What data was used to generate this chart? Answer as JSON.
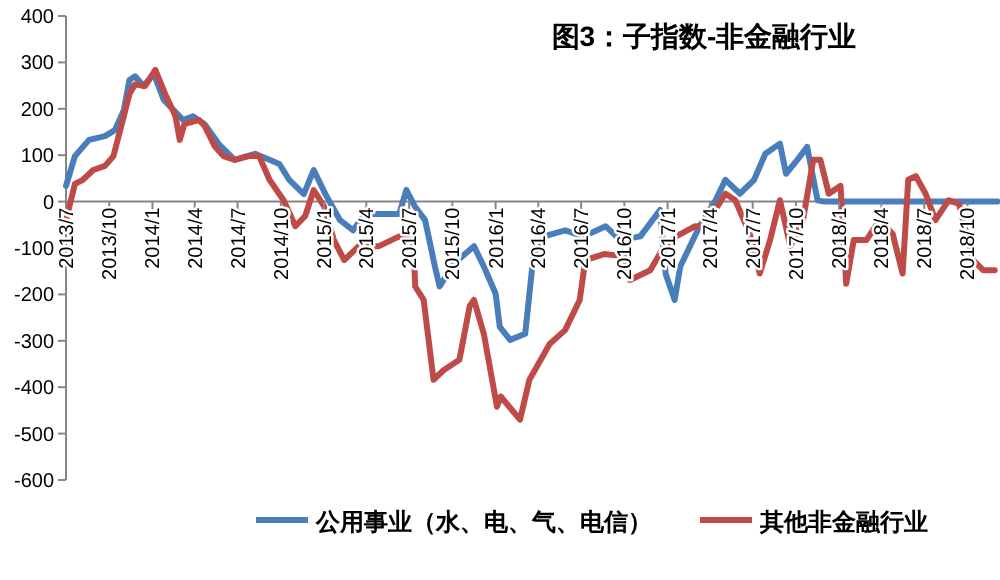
{
  "chart_data": {
    "type": "line",
    "title": "图3：子指数-非金融行业",
    "xlim": [
      "2013-07-01",
      "2018-12-05"
    ],
    "xticks": [
      {
        "value": "2013-07-01",
        "label": "2013/7"
      },
      {
        "value": "2013-10-01",
        "label": "2013/10"
      },
      {
        "value": "2014-01-01",
        "label": "2014/1"
      },
      {
        "value": "2014-04-01",
        "label": "2014/4"
      },
      {
        "value": "2014-07-01",
        "label": "2014/7"
      },
      {
        "value": "2014-10-01",
        "label": "2014/10"
      },
      {
        "value": "2015-01-01",
        "label": "2015/1"
      },
      {
        "value": "2015-04-01",
        "label": "2015/4"
      },
      {
        "value": "2015-07-01",
        "label": "2015/7"
      },
      {
        "value": "2015-10-01",
        "label": "2015/10"
      },
      {
        "value": "2016-01-01",
        "label": "2016/1"
      },
      {
        "value": "2016-04-01",
        "label": "2016/4"
      },
      {
        "value": "2016-07-01",
        "label": "2016/7"
      },
      {
        "value": "2016-10-01",
        "label": "2016/10"
      },
      {
        "value": "2017-01-01",
        "label": "2017/1"
      },
      {
        "value": "2017-04-01",
        "label": "2017/4"
      },
      {
        "value": "2017-07-01",
        "label": "2017/7"
      },
      {
        "value": "2017-10-01",
        "label": "2017/10"
      },
      {
        "value": "2018-01-01",
        "label": "2018/1"
      },
      {
        "value": "2018-04-01",
        "label": "2018/4"
      },
      {
        "value": "2018-07-01",
        "label": "2018/7"
      },
      {
        "value": "2018-10-01",
        "label": "2018/10"
      }
    ],
    "ylim": [
      -600,
      400
    ],
    "yticks": [
      -600,
      -500,
      -400,
      -300,
      -200,
      -100,
      0,
      100,
      200,
      300,
      400
    ],
    "grid": false,
    "legend": "bottom",
    "marker": "none",
    "line_style": "solid",
    "series": [
      {
        "name": "公用事业（水、电、气、电信）",
        "color": "#4a7ebb",
        "x": [
          "2013-07-01",
          "2013-07-20",
          "2013-08-19",
          "2013-09-22",
          "2013-10-13",
          "2013-11-01",
          "2013-11-13",
          "2013-11-25",
          "2013-12-13",
          "2014-01-04",
          "2014-01-25",
          "2014-02-15",
          "2014-03-07",
          "2014-03-28",
          "2014-04-22",
          "2014-05-22",
          "2014-06-25",
          "2014-08-07",
          "2014-09-07",
          "2014-09-28",
          "2014-10-19",
          "2014-11-19",
          "2014-12-10",
          "2015-01-04",
          "2015-02-04",
          "2015-03-04",
          "2015-03-28",
          "2015-05-07",
          "2015-06-10",
          "2015-06-25",
          "2015-07-13",
          "2015-08-04",
          "2015-08-25",
          "2015-09-04",
          "2015-10-04",
          "2015-10-28",
          "2015-11-16",
          "2015-12-07",
          "2016-01-01",
          "2016-01-10",
          "2016-02-01",
          "2016-03-04",
          "2016-03-22",
          "2016-04-13",
          "2016-05-28",
          "2016-07-07",
          "2016-08-22",
          "2016-09-22",
          "2016-11-04",
          "2016-12-16",
          "2016-12-28",
          "2017-01-16",
          "2017-01-28",
          "2017-03-10",
          "2017-04-13",
          "2017-05-04",
          "2017-06-04",
          "2017-07-04",
          "2017-07-28",
          "2017-08-28",
          "2017-09-10",
          "2017-10-04",
          "2017-10-25",
          "2017-11-16",
          "2017-12-01",
          "2018-12-04"
        ],
        "values": [
          34,
          98,
          133,
          141,
          154,
          197,
          262,
          270,
          249,
          275,
          219,
          197,
          176,
          184,
          167,
          124,
          90,
          103,
          90,
          81,
          47,
          16,
          68,
          16,
          -40,
          -62,
          -27,
          -27,
          -27,
          25,
          -10,
          -40,
          -140,
          -183,
          -134,
          -113,
          -96,
          -140,
          -198,
          -270,
          -298,
          -285,
          -113,
          -75,
          -62,
          -75,
          -53,
          -83,
          -75,
          -18,
          -156,
          -212,
          -140,
          -53,
          3,
          47,
          17,
          47,
          103,
          125,
          60,
          90,
          118,
          3,
          0,
          0
        ]
      },
      {
        "name": "其他非金融行业",
        "color": "#be4b48",
        "x": [
          "2013-07-01",
          "2013-07-20",
          "2013-08-06",
          "2013-08-28",
          "2013-09-22",
          "2013-10-10",
          "2013-11-01",
          "2013-11-13",
          "2013-11-25",
          "2013-12-16",
          "2014-01-07",
          "2014-01-28",
          "2014-02-19",
          "2014-02-28",
          "2014-03-10",
          "2014-04-10",
          "2014-04-22",
          "2014-05-13",
          "2014-06-01",
          "2014-06-25",
          "2014-07-25",
          "2014-08-16",
          "2014-09-07",
          "2014-10-07",
          "2014-11-01",
          "2014-11-22",
          "2014-12-10",
          "2015-01-01",
          "2015-01-22",
          "2015-02-13",
          "2015-03-16",
          "2015-04-28",
          "2015-06-10",
          "2015-07-10",
          "2015-07-14",
          "2015-08-01",
          "2015-08-22",
          "2015-09-13",
          "2015-10-16",
          "2015-11-07",
          "2015-11-16",
          "2015-12-07",
          "2016-01-04",
          "2016-01-12",
          "2016-02-22",
          "2016-03-13",
          "2016-04-25",
          "2016-05-28",
          "2016-06-28",
          "2016-07-10",
          "2016-08-19",
          "2016-10-01",
          "2016-10-13",
          "2016-11-25",
          "2016-12-25",
          "2017-01-19",
          "2017-03-01",
          "2017-03-22",
          "2017-05-04",
          "2017-05-25",
          "2017-06-25",
          "2017-07-16",
          "2017-08-07",
          "2017-08-28",
          "2017-09-19",
          "2017-10-16",
          "2017-11-07",
          "2017-11-22",
          "2017-12-10",
          "2018-01-04",
          "2018-01-16",
          "2018-02-01",
          "2018-02-28",
          "2018-03-28",
          "2018-04-25",
          "2018-05-16",
          "2018-05-28",
          "2018-06-13",
          "2018-07-04",
          "2018-07-25",
          "2018-08-22",
          "2018-09-13",
          "2018-10-13",
          "2018-11-04",
          "2018-11-28"
        ],
        "values": [
          -40,
          38,
          47,
          68,
          77,
          98,
          184,
          232,
          253,
          249,
          284,
          232,
          184,
          133,
          167,
          176,
          163,
          120,
          98,
          90,
          98,
          98,
          47,
          3,
          -53,
          -31,
          25,
          -10,
          -83,
          -126,
          -96,
          -96,
          -75,
          -83,
          -183,
          -212,
          -384,
          -363,
          -341,
          -225,
          -212,
          -285,
          -442,
          -420,
          -470,
          -384,
          -307,
          -277,
          -212,
          -126,
          -113,
          -118,
          -169,
          -148,
          -96,
          -75,
          -53,
          -53,
          17,
          3,
          -70,
          -155,
          -83,
          3,
          -96,
          -40,
          90,
          90,
          17,
          34,
          -177,
          -83,
          -83,
          -40,
          -70,
          -155,
          47,
          55,
          17,
          -40,
          3,
          -5,
          -126,
          -148,
          -148
        ]
      }
    ]
  }
}
